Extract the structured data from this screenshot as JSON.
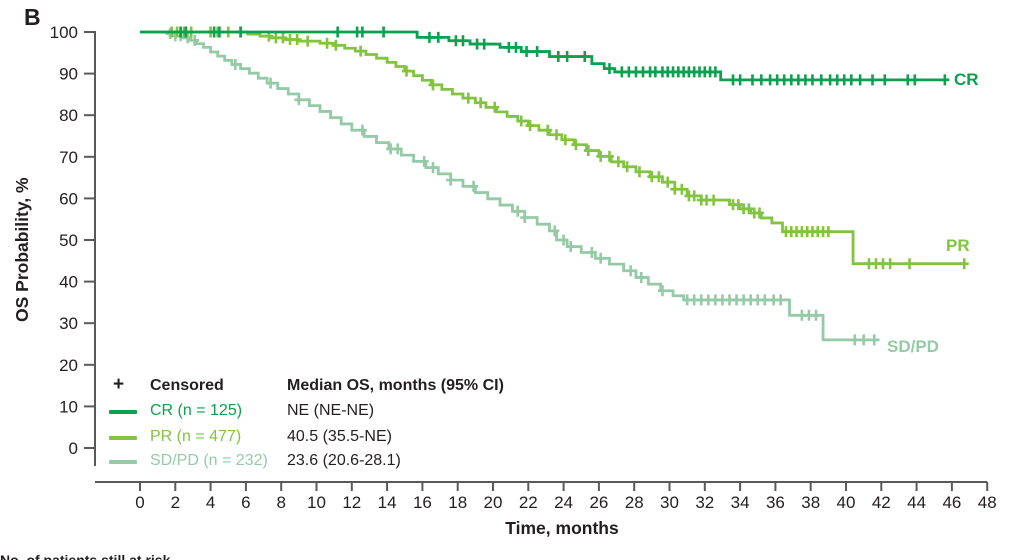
{
  "panel_label": "B",
  "colors": {
    "cr": "#0aa14f",
    "pr": "#82c341",
    "sdpd": "#94cba6",
    "axis": "#59595b",
    "text": "#231f20"
  },
  "axes": {
    "y_title": "OS Probability, %",
    "x_title": "Time, months",
    "y_ticks": [
      0,
      10,
      20,
      30,
      40,
      50,
      60,
      70,
      80,
      90,
      100
    ],
    "x_ticks": [
      0,
      2,
      4,
      6,
      8,
      10,
      12,
      14,
      16,
      18,
      20,
      22,
      24,
      26,
      28,
      30,
      32,
      34,
      36,
      38,
      40,
      42,
      44,
      46,
      48
    ]
  },
  "legend": {
    "censored_symbol": "+",
    "censored_label": "Censored",
    "median_header": "Median OS, months (95% CI)"
  },
  "footer_clipped_text": "No. of patients still at risk",
  "chart_data": {
    "type": "line",
    "subtype": "kaplan-meier-step",
    "title": "",
    "xlabel": "Time, months",
    "ylabel": "OS Probability, %",
    "xlim": [
      0,
      48
    ],
    "ylim": [
      0,
      100
    ],
    "grid": false,
    "legend_position": "lower-left-inside",
    "series": [
      {
        "name": "SD/PD",
        "legend_label": "SD/PD (n = 232)",
        "n": 232,
        "median_label": "23.6 (20.6-28.1)",
        "median_months": 23.6,
        "ci": "20.6-28.1",
        "color_key": "sdpd",
        "end_time": 41.9,
        "steps": [
          [
            0,
            100
          ],
          [
            1.6,
            99.6
          ],
          [
            2.0,
            99.1
          ],
          [
            2.4,
            98.6
          ],
          [
            2.8,
            98.0
          ],
          [
            3.2,
            97.2
          ],
          [
            3.6,
            96.3
          ],
          [
            4.0,
            95.2
          ],
          [
            4.4,
            94.2
          ],
          [
            4.8,
            93.2
          ],
          [
            5.2,
            92.2
          ],
          [
            5.7,
            91.2
          ],
          [
            6.2,
            90.1
          ],
          [
            6.7,
            88.9
          ],
          [
            7.2,
            87.7
          ],
          [
            7.8,
            86.4
          ],
          [
            8.4,
            85.1
          ],
          [
            9.0,
            83.7
          ],
          [
            9.6,
            82.3
          ],
          [
            10.2,
            80.9
          ],
          [
            10.8,
            79.4
          ],
          [
            11.4,
            77.9
          ],
          [
            12.0,
            76.4
          ],
          [
            12.7,
            74.9
          ],
          [
            13.4,
            73.4
          ],
          [
            14.1,
            71.9
          ],
          [
            14.8,
            70.4
          ],
          [
            15.5,
            68.9
          ],
          [
            16.2,
            67.4
          ],
          [
            16.9,
            65.9
          ],
          [
            17.6,
            64.4
          ],
          [
            18.3,
            62.9
          ],
          [
            19.0,
            61.4
          ],
          [
            19.7,
            59.9
          ],
          [
            20.4,
            58.4
          ],
          [
            21.1,
            56.9
          ],
          [
            21.8,
            55.4
          ],
          [
            22.5,
            53.8
          ],
          [
            23.2,
            52.2
          ],
          [
            23.6,
            50.0
          ],
          [
            24.2,
            48.4
          ],
          [
            25.0,
            47.0
          ],
          [
            25.8,
            45.6
          ],
          [
            26.6,
            44.2
          ],
          [
            27.4,
            42.6
          ],
          [
            28.1,
            41.0
          ],
          [
            28.8,
            39.4
          ],
          [
            29.5,
            37.8
          ],
          [
            30.2,
            36.6
          ],
          [
            30.8,
            35.6
          ],
          [
            36.8,
            31.9
          ],
          [
            38.7,
            26.0
          ]
        ],
        "censor_times": [
          1.7,
          2.0,
          2.3,
          2.7,
          3.1,
          5.4,
          7.4,
          9.0,
          12.6,
          14.2,
          14.6,
          16.1,
          16.6,
          17.6,
          18.9,
          21.4,
          21.8,
          23.5,
          24.0,
          24.4,
          25.6,
          26.1,
          27.8,
          28.4,
          29.6,
          31.0,
          31.4,
          31.8,
          32.2,
          32.6,
          33.0,
          33.4,
          33.8,
          34.2,
          34.6,
          35.0,
          35.4,
          35.9,
          36.3,
          37.5,
          37.9,
          38.3,
          40.5,
          41.0,
          41.6
        ],
        "curve_end_label": "SD/PD"
      },
      {
        "name": "PR",
        "legend_label": "PR (n = 477)",
        "n": 477,
        "median_label": "40.5 (35.5-NE)",
        "median_months": 40.5,
        "ci": "35.5-NE",
        "color_key": "pr",
        "end_time": 46.8,
        "steps": [
          [
            0,
            100
          ],
          [
            6.1,
            99.5
          ],
          [
            6.8,
            99.0
          ],
          [
            7.4,
            98.6
          ],
          [
            8.2,
            98.2
          ],
          [
            9.0,
            97.8
          ],
          [
            10.2,
            97.3
          ],
          [
            11.0,
            96.8
          ],
          [
            11.6,
            96.1
          ],
          [
            12.2,
            95.4
          ],
          [
            12.8,
            94.6
          ],
          [
            13.4,
            93.7
          ],
          [
            14.0,
            92.7
          ],
          [
            14.5,
            91.7
          ],
          [
            15.0,
            90.6
          ],
          [
            15.5,
            89.5
          ],
          [
            16.0,
            88.4
          ],
          [
            16.5,
            87.3
          ],
          [
            17.1,
            86.2
          ],
          [
            17.7,
            85.1
          ],
          [
            18.3,
            84.1
          ],
          [
            19.0,
            83.0
          ],
          [
            19.6,
            81.9
          ],
          [
            20.2,
            80.8
          ],
          [
            20.8,
            79.7
          ],
          [
            21.4,
            78.6
          ],
          [
            22.0,
            77.5
          ],
          [
            22.6,
            76.4
          ],
          [
            23.2,
            75.3
          ],
          [
            23.9,
            74.1
          ],
          [
            24.6,
            72.9
          ],
          [
            25.3,
            71.5
          ],
          [
            26.0,
            70.1
          ],
          [
            26.7,
            68.8
          ],
          [
            27.4,
            67.6
          ],
          [
            28.1,
            66.4
          ],
          [
            28.9,
            65.2
          ],
          [
            29.6,
            63.9
          ],
          [
            30.3,
            62.2
          ],
          [
            31.0,
            60.6
          ],
          [
            31.8,
            59.6
          ],
          [
            33.4,
            58.5
          ],
          [
            34.0,
            57.5
          ],
          [
            34.6,
            56.5
          ],
          [
            35.2,
            55.3
          ],
          [
            35.8,
            54.1
          ],
          [
            36.4,
            52.0
          ],
          [
            40.4,
            44.3
          ]
        ],
        "censor_times": [
          1.8,
          2.1,
          2.5,
          2.9,
          4.0,
          4.4,
          5.0,
          5.7,
          7.3,
          7.7,
          8.1,
          8.5,
          8.9,
          9.5,
          10.6,
          11.1,
          12.5,
          15.1,
          16.6,
          18.6,
          19.3,
          20.1,
          21.6,
          22.1,
          23.1,
          23.6,
          24.1,
          24.7,
          25.4,
          26.1,
          26.6,
          27.1,
          27.6,
          28.3,
          29.0,
          29.4,
          29.9,
          30.3,
          30.7,
          31.1,
          31.4,
          31.8,
          32.1,
          32.5,
          33.6,
          33.9,
          34.2,
          34.5,
          34.8,
          35.1,
          36.6,
          36.9,
          37.2,
          37.5,
          37.8,
          38.1,
          38.4,
          38.7,
          39.0,
          41.3,
          41.7,
          42.1,
          42.5,
          43.6,
          46.7
        ],
        "curve_end_label": "PR"
      },
      {
        "name": "CR",
        "legend_label": "CR (n = 125)",
        "n": 125,
        "median_label": "NE (NE-NE)",
        "median_months": "NE",
        "ci": "NE-NE",
        "color_key": "cr",
        "end_time": 45.7,
        "steps": [
          [
            0,
            100
          ],
          [
            15.7,
            98.7
          ],
          [
            17.5,
            97.9
          ],
          [
            18.7,
            97.1
          ],
          [
            20.4,
            96.3
          ],
          [
            21.6,
            95.3
          ],
          [
            23.2,
            94.1
          ],
          [
            25.6,
            92.4
          ],
          [
            26.3,
            91.2
          ],
          [
            26.9,
            90.4
          ],
          [
            32.9,
            88.5
          ]
        ],
        "censor_times": [
          2.3,
          2.6,
          4.2,
          4.5,
          5.7,
          11.2,
          12.3,
          12.6,
          13.8,
          16.4,
          16.9,
          17.9,
          18.3,
          19.1,
          19.5,
          20.9,
          21.3,
          21.9,
          22.5,
          23.7,
          24.2,
          25.2,
          26.6,
          27.3,
          27.7,
          28.1,
          28.5,
          28.9,
          29.2,
          29.6,
          29.9,
          30.2,
          30.5,
          30.8,
          31.1,
          31.4,
          31.7,
          32.0,
          32.3,
          32.6,
          33.6,
          34.0,
          34.7,
          35.2,
          35.7,
          36.1,
          36.5,
          36.9,
          37.3,
          37.7,
          38.1,
          38.6,
          39.1,
          39.5,
          39.9,
          40.3,
          40.8,
          41.5,
          42.2,
          43.5,
          43.9,
          45.6
        ],
        "curve_end_label": "CR"
      }
    ]
  }
}
